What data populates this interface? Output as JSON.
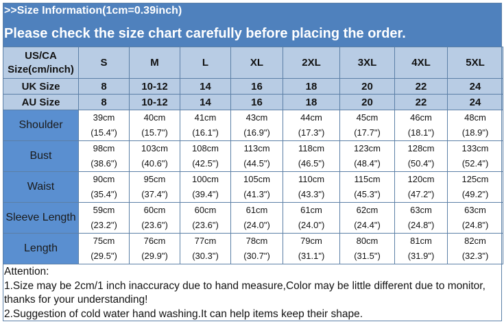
{
  "title_line1": ">>Size Information(1cm=0.39inch)",
  "title_line2": "Please check the size chart carefully before placing the order.",
  "header": {
    "label_line1": "US/CA",
    "label_line2": "Size(cm/inch)",
    "sizes": [
      "S",
      "M",
      "L",
      "XL",
      "2XL",
      "3XL",
      "4XL",
      "5XL"
    ]
  },
  "uk": {
    "label": "UK Size",
    "values": [
      "8",
      "10-12",
      "14",
      "16",
      "18",
      "20",
      "22",
      "24"
    ]
  },
  "au": {
    "label": "AU Size",
    "values": [
      "8",
      "10-12",
      "14",
      "16",
      "18",
      "20",
      "22",
      "24"
    ]
  },
  "rows": [
    {
      "label": "Shoulder",
      "cm": [
        "39cm",
        "40cm",
        "41cm",
        "43cm",
        "44cm",
        "45cm",
        "46cm",
        "48cm"
      ],
      "inch": [
        "(15.4\")",
        "(15.7\")",
        "(16.1\")",
        "(16.9\")",
        "(17.3\")",
        "(17.7\")",
        "(18.1\")",
        "(18.9\")"
      ]
    },
    {
      "label": "Bust",
      "cm": [
        "98cm",
        "103cm",
        "108cm",
        "113cm",
        "118cm",
        "123cm",
        "128cm",
        "133cm"
      ],
      "inch": [
        "(38.6\")",
        "(40.6\")",
        "(42.5\")",
        "(44.5\")",
        "(46.5\")",
        "(48.4\")",
        "(50.4\")",
        "(52.4\")"
      ]
    },
    {
      "label": "Waist",
      "cm": [
        "90cm",
        "95cm",
        "100cm",
        "105cm",
        "110cm",
        "115cm",
        "120cm",
        "125cm"
      ],
      "inch": [
        "(35.4\")",
        "(37.4\")",
        "(39.4\")",
        "(41.3\")",
        "(43.3\")",
        "(45.3\")",
        "(47.2\")",
        "(49.2\")"
      ]
    },
    {
      "label": "Sleeve Length",
      "cm": [
        "59cm",
        "60cm",
        "60cm",
        "61cm",
        "61cm",
        "62cm",
        "63cm",
        "63cm"
      ],
      "inch": [
        "(23.2\")",
        "(23.6\")",
        "(23.6\")",
        "(24.0\")",
        "(24.0\")",
        "(24.4\")",
        "(24.8\")",
        "(24.8\")"
      ]
    },
    {
      "label": "Length",
      "cm": [
        "75cm",
        "76cm",
        "77cm",
        "78cm",
        "79cm",
        "80cm",
        "81cm",
        "82cm"
      ],
      "inch": [
        "(29.5\")",
        "(29.9\")",
        "(30.3\")",
        "(30.7\")",
        "(31.1\")",
        "(31.5\")",
        "(31.9\")",
        "(32.3\")"
      ]
    }
  ],
  "attention": [
    "Attention:",
    "1.Size may be 2cm/1 inch inaccuracy due to hand measure,Color may be little different due to monitor,",
    "thanks for your understanding!",
    "2.Suggestion of cold water hand washing.It can help items keep their shape."
  ],
  "colors": {
    "band": "#4f81bd",
    "header_rows": "#b8cce4",
    "label_column": "#5a8fd0",
    "border": "#5b7fa6"
  }
}
